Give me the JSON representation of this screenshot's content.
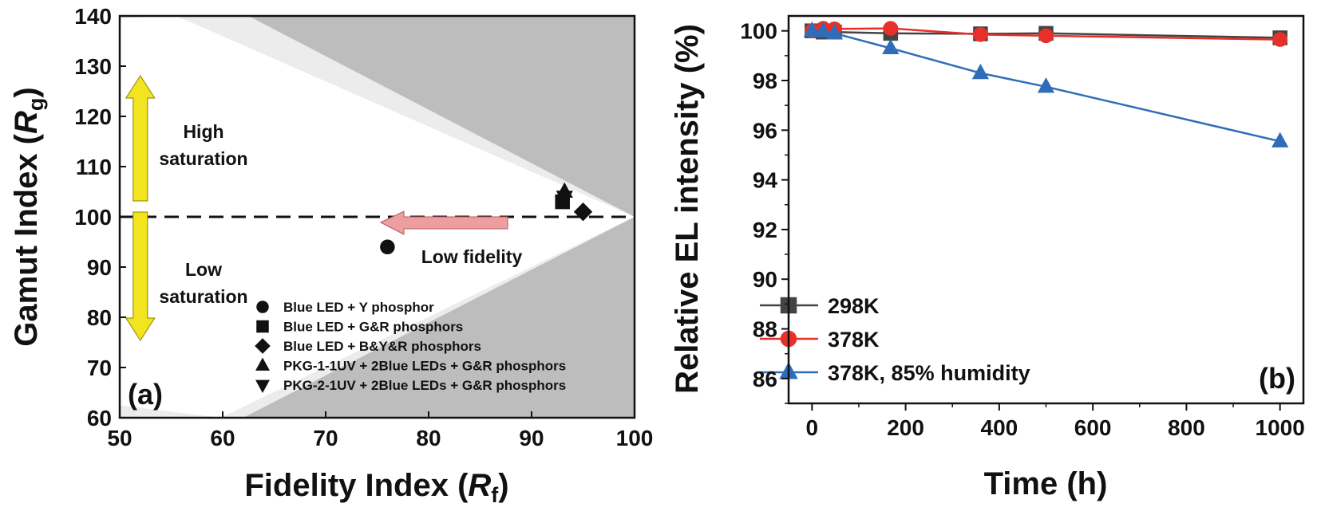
{
  "chart_data": [
    {
      "type": "scatter",
      "panel_label": "(a)",
      "xlabel": {
        "text": "Fidelity Index (",
        "italic": "R",
        "sub": "f",
        "close": ")"
      },
      "ylabel": {
        "text": "Gamut Index (",
        "italic": "R",
        "sub": "g",
        "close": ")"
      },
      "xlim": [
        50,
        100
      ],
      "ylim": [
        60,
        140
      ],
      "xticks": [
        50,
        60,
        70,
        80,
        90,
        100
      ],
      "yticks": [
        60,
        70,
        80,
        90,
        100,
        110,
        120,
        130,
        140
      ],
      "reference_line_y": 100,
      "annotations": {
        "high": [
          "High",
          "saturation"
        ],
        "low": [
          "Low",
          "saturation"
        ],
        "fidelity": "Low fidelity"
      },
      "colors": {
        "shade_dark": "#bdbdbd",
        "shade_light": "#ececec",
        "arrow_yellow": "#f2e41f",
        "arrow_pink": "#ef9ea0"
      },
      "series": [
        {
          "name": "Blue LED + Y phosphor",
          "marker": "circle",
          "points": [
            [
              76,
              94
            ]
          ]
        },
        {
          "name": "Blue LED + G&R phosphors",
          "marker": "square",
          "points": [
            [
              93,
              103
            ]
          ]
        },
        {
          "name": "Blue LED + B&Y&R phosphors",
          "marker": "diamond",
          "points": [
            [
              95,
              101
            ]
          ]
        },
        {
          "name": "PKG-1-1UV + 2Blue LEDs + G&R phosphors",
          "marker": "triangle-up",
          "points": [
            [
              93.2,
              105
            ]
          ]
        },
        {
          "name": "PKG-2-1UV + 2Blue LEDs + G&R phosphors",
          "marker": "triangle-down",
          "points": [
            [
              93.2,
              104
            ]
          ]
        }
      ]
    },
    {
      "type": "line",
      "panel_label": "(b)",
      "xlabel": "Time (h)",
      "ylabel": "Relative EL intensity (%)",
      "xlim": [
        -50,
        1050
      ],
      "ylim": [
        85,
        100.6
      ],
      "xticks": [
        0,
        200,
        400,
        600,
        800,
        1000
      ],
      "yticks": [
        86,
        88,
        90,
        92,
        94,
        96,
        98,
        100
      ],
      "series": [
        {
          "name": "298K",
          "color": "#444444",
          "marker": "square",
          "x": [
            0,
            24,
            48,
            168,
            360,
            500,
            1000
          ],
          "y": [
            100,
            99.95,
            99.95,
            99.9,
            99.88,
            99.9,
            99.72
          ]
        },
        {
          "name": "378K",
          "color": "#e8302a",
          "marker": "circle",
          "x": [
            0,
            24,
            48,
            168,
            360,
            500,
            1000
          ],
          "y": [
            100,
            100.1,
            100.08,
            100.1,
            99.85,
            99.8,
            99.65
          ]
        },
        {
          "name": "378K, 85% humidity",
          "color": "#2f6db8",
          "marker": "triangle-up",
          "x": [
            0,
            24,
            48,
            168,
            360,
            500,
            1000
          ],
          "y": [
            100,
            99.98,
            99.9,
            99.3,
            98.3,
            97.75,
            95.55
          ]
        }
      ]
    }
  ]
}
